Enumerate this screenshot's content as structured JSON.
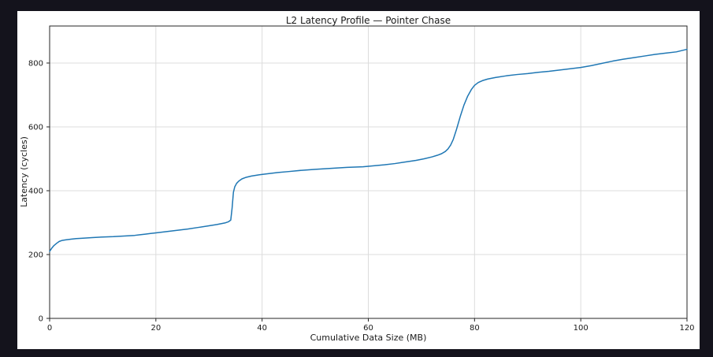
{
  "figure": {
    "page_background": "#14131c",
    "figure_background": "#ffffff"
  },
  "chart_data": {
    "type": "line",
    "title": "L2 Latency Profile — Pointer Chase",
    "xlabel": "Cumulative Data Size (MB)",
    "ylabel": "Latency (cycles)",
    "xlim": [
      0,
      120
    ],
    "ylim": [
      0,
      916
    ],
    "x_ticks": [
      0,
      20,
      40,
      60,
      80,
      100,
      120
    ],
    "y_ticks": [
      0,
      200,
      400,
      600,
      800
    ],
    "grid": true,
    "legend": false,
    "line_color": "#1f77b4",
    "grid_color": "#dcdcdc",
    "spine_color": "#262626",
    "tick_label_color": "#1a1a1a",
    "series": [
      {
        "name": "latency",
        "points": [
          [
            0,
            210
          ],
          [
            0.4,
            220
          ],
          [
            0.8,
            228
          ],
          [
            1.3,
            235
          ],
          [
            1.8,
            241
          ],
          [
            2.3,
            244
          ],
          [
            3,
            246
          ],
          [
            4,
            248
          ],
          [
            5,
            250
          ],
          [
            6,
            251
          ],
          [
            8,
            253
          ],
          [
            10,
            255
          ],
          [
            12,
            256
          ],
          [
            14,
            258
          ],
          [
            16,
            260
          ],
          [
            17,
            262
          ],
          [
            18,
            264
          ],
          [
            19,
            266
          ],
          [
            20,
            268
          ],
          [
            22,
            272
          ],
          [
            24,
            276
          ],
          [
            26,
            280
          ],
          [
            28,
            285
          ],
          [
            30,
            290
          ],
          [
            31.5,
            294
          ],
          [
            33,
            299
          ],
          [
            33.7,
            303
          ],
          [
            34.1,
            308
          ],
          [
            34.35,
            345
          ],
          [
            34.6,
            395
          ],
          [
            34.85,
            412
          ],
          [
            35.2,
            423
          ],
          [
            35.6,
            430
          ],
          [
            36.2,
            437
          ],
          [
            37,
            442
          ],
          [
            38,
            446
          ],
          [
            39.5,
            450
          ],
          [
            41,
            453
          ],
          [
            43,
            457
          ],
          [
            45,
            460
          ],
          [
            47.5,
            464
          ],
          [
            50,
            467
          ],
          [
            53,
            470
          ],
          [
            56,
            473
          ],
          [
            59,
            475
          ],
          [
            61,
            478
          ],
          [
            63,
            481
          ],
          [
            65,
            485
          ],
          [
            67,
            490
          ],
          [
            69,
            495
          ],
          [
            70.5,
            500
          ],
          [
            72,
            506
          ],
          [
            73,
            511
          ],
          [
            73.8,
            516
          ],
          [
            74.5,
            523
          ],
          [
            75,
            531
          ],
          [
            75.5,
            543
          ],
          [
            76,
            561
          ],
          [
            76.6,
            592
          ],
          [
            77.3,
            632
          ],
          [
            78,
            668
          ],
          [
            78.7,
            696
          ],
          [
            79.4,
            717
          ],
          [
            80,
            730
          ],
          [
            80.7,
            739
          ],
          [
            81.5,
            745
          ],
          [
            82.5,
            750
          ],
          [
            84,
            755
          ],
          [
            86,
            760
          ],
          [
            88,
            764
          ],
          [
            90,
            767
          ],
          [
            92,
            771
          ],
          [
            94,
            774
          ],
          [
            96,
            778
          ],
          [
            98,
            782
          ],
          [
            100,
            786
          ],
          [
            102,
            792
          ],
          [
            104,
            799
          ],
          [
            106,
            806
          ],
          [
            108,
            812
          ],
          [
            110,
            817
          ],
          [
            112,
            822
          ],
          [
            114,
            827
          ],
          [
            116,
            831
          ],
          [
            118,
            835
          ],
          [
            119,
            839
          ],
          [
            120,
            843
          ]
        ]
      }
    ]
  }
}
